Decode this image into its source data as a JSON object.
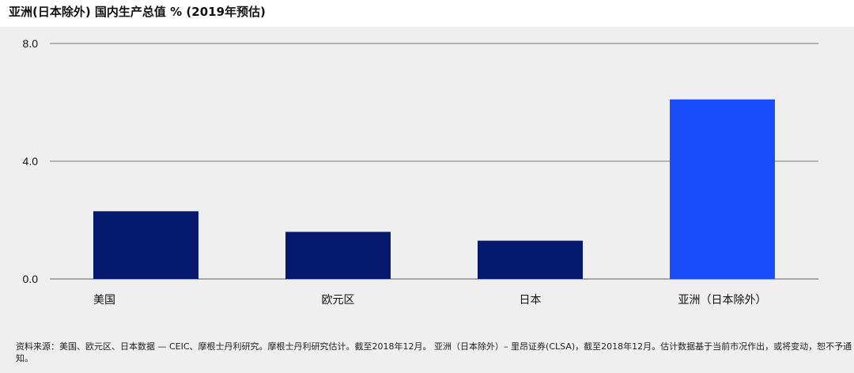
{
  "page": {
    "title": "亚洲(日本除外) 国内生产总值 % (2019年预估)",
    "source_note": "资料来源：美国、欧元区、日本数据 — CEIC、摩根士丹利研究。摩根士丹利研究估计。截至2018年12月。 亚洲（日本除外）– 里昂证券(CLSA)，截至2018年12月。估计数据基于当前市况作出，或将变动，恕不予通知。"
  },
  "colors": {
    "bar_dark": "#051a6f",
    "bar_highlight": "#1c4dfb",
    "gridline": "#7a7a7a",
    "panel_bg": "#efefef"
  },
  "chart_data": {
    "type": "bar",
    "title": "亚洲(日本除外) 国内生产总值 % (2019年预估)",
    "xlabel": "",
    "ylabel": "",
    "categories": [
      "美国",
      "欧元区",
      "日本",
      "亚洲（日本除外）"
    ],
    "values": [
      2.3,
      1.6,
      1.3,
      6.1
    ],
    "highlight_index": 3,
    "ylim": [
      0,
      8
    ],
    "yticks": [
      0,
      4,
      8
    ],
    "ytick_labels": [
      "0.0",
      "4.0",
      "8.0"
    ],
    "grid": true,
    "legend": "none"
  }
}
